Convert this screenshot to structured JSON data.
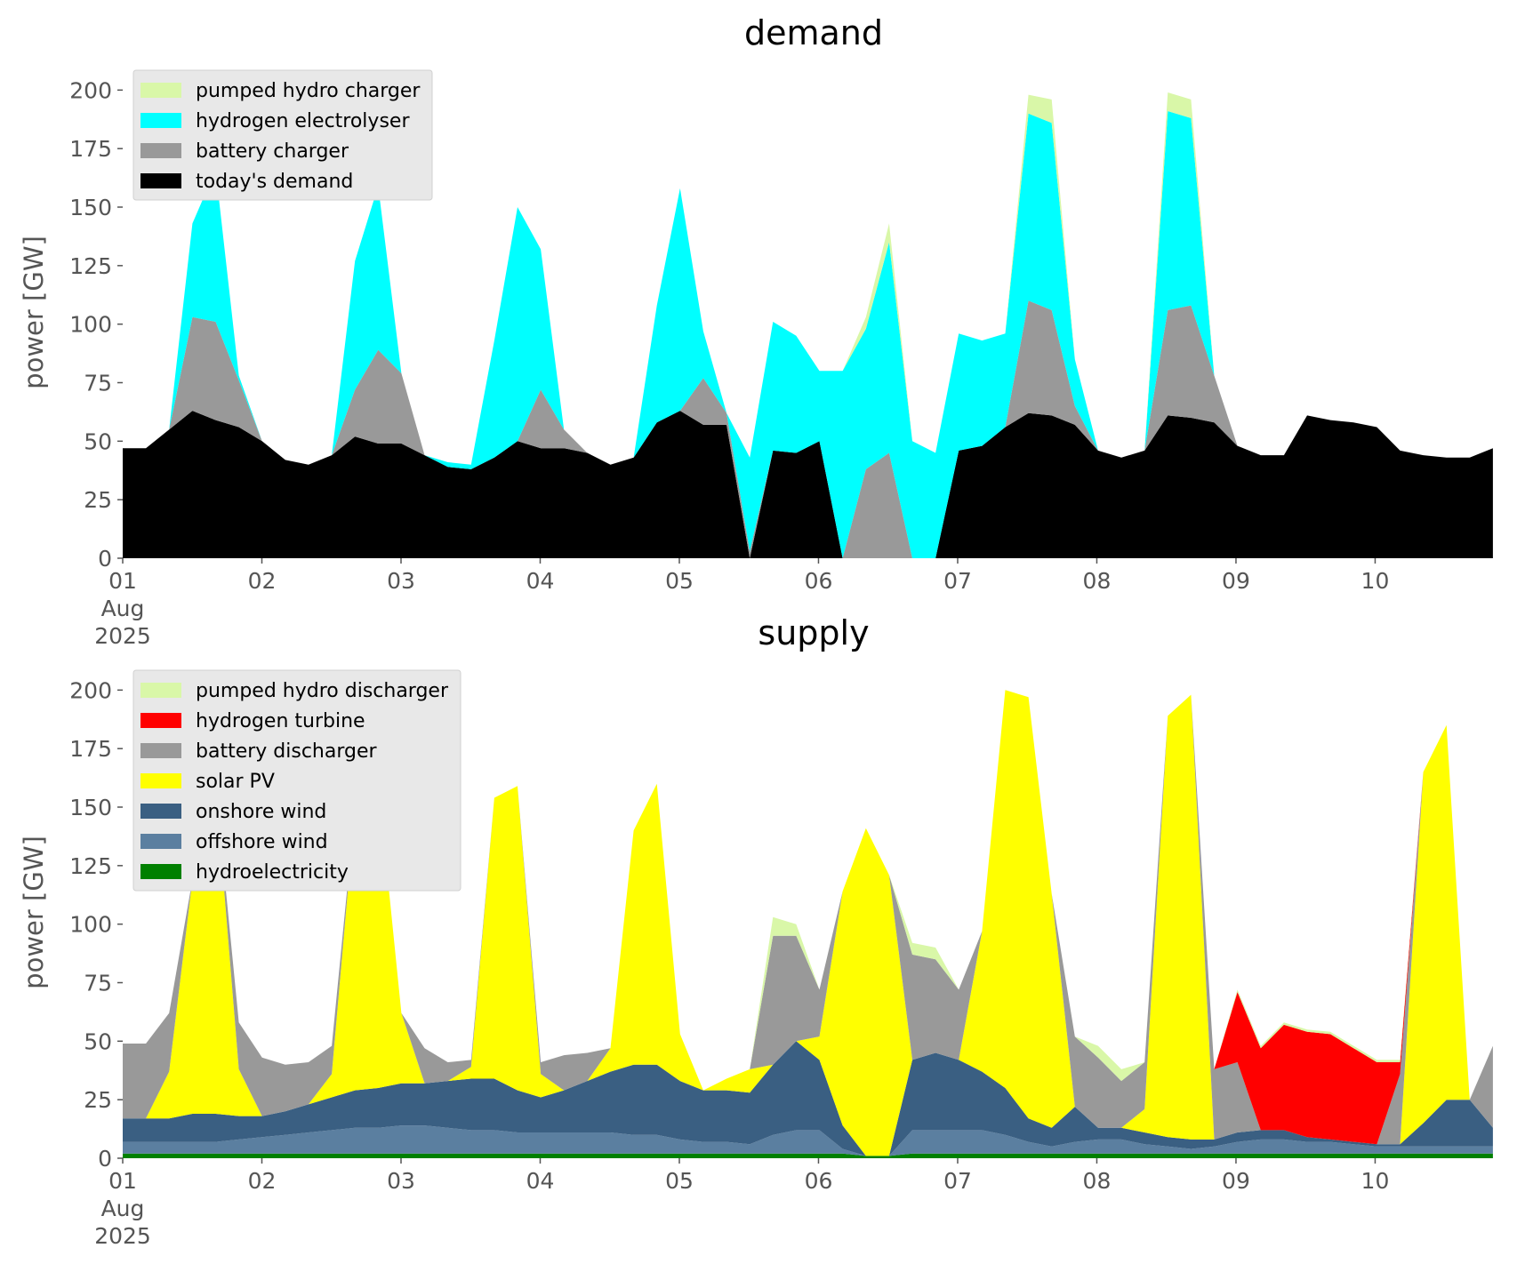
{
  "chart_data": [
    {
      "type": "area",
      "stacked": true,
      "title": "demand",
      "ylabel": "power [GW]",
      "xlabel": "",
      "x_ticks": [
        "01\nAug\n2025",
        "02",
        "03",
        "04",
        "05",
        "06",
        "07",
        "08",
        "09",
        "10"
      ],
      "xlim": [
        0,
        238
      ],
      "ylim": [
        0,
        210
      ],
      "yticks": [
        0,
        25,
        50,
        75,
        100,
        125,
        150,
        175,
        200
      ],
      "grid": false,
      "legend_position": "top-left",
      "x": [
        0,
        4,
        8,
        12,
        16,
        20,
        24,
        28,
        32,
        36,
        40,
        44,
        48,
        52,
        56,
        60,
        64,
        68,
        72,
        76,
        80,
        84,
        88,
        92,
        96,
        100,
        104,
        108,
        112,
        116,
        120,
        124,
        128,
        132,
        136,
        140,
        144,
        148,
        152,
        156,
        160,
        164,
        168,
        172,
        176,
        180,
        184,
        188,
        192,
        196,
        200,
        204,
        208,
        212,
        216,
        220,
        224,
        228,
        232,
        236
      ],
      "series": [
        {
          "name": "today's demand",
          "color": "#000000",
          "values": [
            47,
            47,
            55,
            63,
            59,
            56,
            50,
            42,
            40,
            44,
            52,
            49,
            49,
            44,
            39,
            38,
            43,
            50,
            47,
            47,
            45,
            40,
            43,
            58,
            63,
            57,
            57,
            0,
            46,
            45,
            50,
            0,
            0,
            0,
            0,
            0,
            46,
            48,
            56,
            62,
            61,
            57,
            46,
            43,
            46,
            61,
            60,
            58,
            48,
            44,
            44,
            61,
            59,
            58,
            56,
            46,
            44,
            43,
            43,
            47
          ]
        },
        {
          "name": "battery charger",
          "color": "#999999",
          "values": [
            0,
            0,
            0,
            40,
            42,
            20,
            0,
            0,
            0,
            0,
            20,
            40,
            30,
            0,
            0,
            0,
            0,
            0,
            25,
            8,
            0,
            0,
            0,
            0,
            0,
            20,
            5,
            3,
            0,
            0,
            0,
            0,
            38,
            45,
            0,
            0,
            0,
            0,
            0,
            48,
            45,
            8,
            0,
            0,
            0,
            45,
            48,
            20,
            0,
            0,
            0,
            0,
            0,
            0,
            0,
            0,
            0,
            0,
            0,
            0
          ]
        },
        {
          "name": "hydrogen electrolyser",
          "color": "#00ffff",
          "values": [
            0,
            0,
            0,
            40,
            65,
            2,
            0,
            0,
            0,
            0,
            55,
            70,
            0,
            0,
            2,
            2,
            50,
            100,
            60,
            0,
            0,
            0,
            0,
            50,
            95,
            20,
            0,
            40,
            55,
            50,
            30,
            80,
            60,
            90,
            50,
            45,
            50,
            45,
            40,
            80,
            80,
            20,
            0,
            0,
            0,
            85,
            80,
            0,
            0,
            0,
            0,
            0,
            0,
            0,
            0,
            0,
            0,
            0,
            0,
            0
          ]
        },
        {
          "name": "pumped hydro charger",
          "color": "#d9f7a8",
          "values": [
            0,
            0,
            0,
            0,
            0,
            0,
            0,
            0,
            0,
            0,
            0,
            0,
            0,
            0,
            0,
            0,
            0,
            0,
            0,
            0,
            0,
            0,
            0,
            0,
            0,
            0,
            0,
            0,
            0,
            0,
            0,
            0,
            5,
            8,
            0,
            0,
            0,
            0,
            0,
            8,
            10,
            0,
            0,
            0,
            0,
            8,
            8,
            0,
            0,
            0,
            0,
            0,
            0,
            0,
            0,
            0,
            0,
            0,
            0,
            0
          ]
        }
      ]
    },
    {
      "type": "area",
      "stacked": true,
      "title": "supply",
      "ylabel": "power [GW]",
      "xlabel": "",
      "x_ticks": [
        "01\nAug\n2025",
        "02",
        "03",
        "04",
        "05",
        "06",
        "07",
        "08",
        "09",
        "10"
      ],
      "xlim": [
        0,
        238
      ],
      "ylim": [
        0,
        210
      ],
      "yticks": [
        0,
        25,
        50,
        75,
        100,
        125,
        150,
        175,
        200
      ],
      "grid": false,
      "legend_position": "top-left",
      "x": [
        0,
        4,
        8,
        12,
        16,
        20,
        24,
        28,
        32,
        36,
        40,
        44,
        48,
        52,
        56,
        60,
        64,
        68,
        72,
        76,
        80,
        84,
        88,
        92,
        96,
        100,
        104,
        108,
        112,
        116,
        120,
        124,
        128,
        132,
        136,
        140,
        144,
        148,
        152,
        156,
        160,
        164,
        168,
        172,
        176,
        180,
        184,
        188,
        192,
        196,
        200,
        204,
        208,
        212,
        216,
        220,
        224,
        228,
        232,
        236
      ],
      "series": [
        {
          "name": "hydroelectricity",
          "color": "#008000",
          "values": [
            2,
            2,
            2,
            2,
            2,
            2,
            2,
            2,
            2,
            2,
            2,
            2,
            2,
            2,
            2,
            2,
            2,
            2,
            2,
            2,
            2,
            2,
            2,
            2,
            2,
            2,
            2,
            2,
            2,
            2,
            2,
            2,
            1,
            1,
            2,
            2,
            2,
            2,
            2,
            2,
            2,
            2,
            2,
            2,
            2,
            2,
            2,
            2,
            2,
            2,
            2,
            2,
            2,
            2,
            2,
            2,
            2,
            2,
            2,
            2
          ]
        },
        {
          "name": "offshore wind",
          "color": "#5b7fa0",
          "values": [
            5,
            5,
            5,
            5,
            5,
            6,
            7,
            8,
            9,
            10,
            11,
            11,
            12,
            12,
            11,
            10,
            10,
            9,
            9,
            9,
            9,
            9,
            8,
            8,
            6,
            5,
            5,
            4,
            8,
            10,
            10,
            2,
            0,
            0,
            10,
            10,
            10,
            10,
            8,
            5,
            3,
            5,
            6,
            6,
            4,
            3,
            2,
            3,
            5,
            6,
            6,
            5,
            5,
            4,
            3,
            3,
            3,
            3,
            3,
            3
          ]
        },
        {
          "name": "onshore wind",
          "color": "#3a5f82",
          "values": [
            10,
            10,
            10,
            12,
            12,
            10,
            9,
            10,
            12,
            14,
            16,
            17,
            18,
            18,
            20,
            22,
            22,
            18,
            15,
            18,
            22,
            26,
            30,
            30,
            25,
            22,
            22,
            22,
            30,
            38,
            30,
            10,
            0,
            0,
            30,
            33,
            30,
            25,
            20,
            10,
            8,
            15,
            5,
            5,
            5,
            4,
            4,
            3,
            4,
            4,
            4,
            2,
            1,
            1,
            1,
            1,
            10,
            20,
            20,
            8
          ]
        },
        {
          "name": "solar PV",
          "color": "#ffff00",
          "values": [
            0,
            0,
            20,
            100,
            140,
            20,
            0,
            0,
            0,
            10,
            120,
            130,
            30,
            0,
            0,
            5,
            120,
            130,
            10,
            0,
            0,
            10,
            100,
            120,
            20,
            0,
            5,
            10,
            0,
            0,
            10,
            100,
            140,
            120,
            0,
            0,
            0,
            60,
            170,
            180,
            100,
            0,
            0,
            0,
            10,
            180,
            190,
            0,
            0,
            0,
            0,
            0,
            0,
            0,
            0,
            0,
            150,
            160,
            0,
            0
          ]
        },
        {
          "name": "battery discharger",
          "color": "#999999",
          "values": [
            32,
            32,
            25,
            0,
            0,
            20,
            25,
            20,
            18,
            12,
            0,
            0,
            0,
            15,
            8,
            3,
            0,
            0,
            5,
            15,
            12,
            0,
            0,
            0,
            0,
            0,
            0,
            0,
            55,
            45,
            20,
            0,
            0,
            0,
            45,
            40,
            30,
            0,
            0,
            0,
            0,
            30,
            30,
            20,
            20,
            0,
            0,
            30,
            30,
            0,
            0,
            0,
            0,
            0,
            0,
            30,
            0,
            0,
            0,
            35
          ]
        },
        {
          "name": "hydrogen turbine",
          "color": "#ff0000",
          "values": [
            0,
            0,
            0,
            0,
            0,
            0,
            0,
            0,
            0,
            0,
            0,
            0,
            0,
            0,
            0,
            0,
            0,
            0,
            0,
            0,
            0,
            0,
            0,
            0,
            0,
            0,
            0,
            0,
            0,
            0,
            0,
            0,
            0,
            0,
            0,
            0,
            0,
            0,
            0,
            0,
            0,
            0,
            0,
            0,
            0,
            0,
            0,
            0,
            30,
            35,
            45,
            45,
            45,
            40,
            35,
            5,
            0,
            0,
            0,
            0
          ]
        },
        {
          "name": "pumped hydro discharger",
          "color": "#d9f7a8",
          "values": [
            0,
            0,
            0,
            0,
            0,
            0,
            0,
            0,
            0,
            0,
            0,
            0,
            0,
            0,
            0,
            0,
            0,
            0,
            0,
            0,
            0,
            0,
            0,
            0,
            0,
            0,
            0,
            0,
            8,
            5,
            0,
            0,
            0,
            0,
            5,
            5,
            0,
            0,
            0,
            0,
            0,
            0,
            5,
            5,
            0,
            0,
            0,
            0,
            1,
            1,
            1,
            1,
            1,
            1,
            1,
            1,
            0,
            0,
            0,
            0
          ]
        }
      ]
    }
  ]
}
